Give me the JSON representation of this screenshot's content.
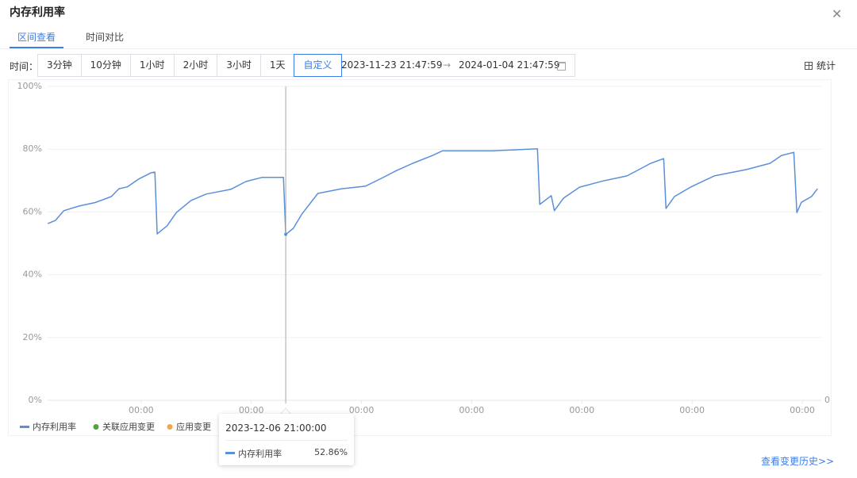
{
  "header": {
    "title": "内存利用率"
  },
  "tabs": [
    "区间查看",
    "时间对比"
  ],
  "active_tab": 0,
  "toolbar": {
    "label": "时间：",
    "ranges": [
      "3分钟",
      "10分钟",
      "1小时",
      "2小时",
      "3小时",
      "1天",
      "自定义"
    ],
    "selected": 6,
    "start": "2023-11-23 21:47:59",
    "separator": "→",
    "end": "2024-01-04 21:47:59",
    "stats": "统计"
  },
  "chart_data": {
    "type": "line",
    "x": [
      "2023-11-23 22:00",
      "2023-11-24 08:00",
      "2023-11-24 19:00",
      "2023-11-25 15:00",
      "2023-11-26 12:00",
      "2023-11-27 09:00",
      "2023-11-27 19:00",
      "2023-11-28 06:00",
      "2023-11-28 21:00",
      "2023-11-29 13:00",
      "2023-11-29 18:00",
      "2023-11-29 21:00",
      "2023-11-30 10:00",
      "2023-11-30 22:00",
      "2023-12-01 17:00",
      "2023-12-02 13:00",
      "2023-12-03 21:00",
      "2023-12-04 17:00",
      "2023-12-05 14:00",
      "2023-12-06 18:00",
      "2023-12-06 21:00",
      "2023-12-07 07:00",
      "2023-12-07 18:00",
      "2023-12-08 15:00",
      "2023-12-09 22:00",
      "2023-12-11 05:00",
      "2023-12-12 02:00",
      "2023-12-12 22:00",
      "2023-12-13 19:00",
      "2023-12-14 21:00",
      "2023-12-15 10:00",
      "2023-12-18 03:00",
      "2023-12-20 14:00",
      "2023-12-20 17:00",
      "2023-12-21 08:00",
      "2023-12-21 12:00",
      "2023-12-22 00:00",
      "2023-12-22 21:00",
      "2023-12-24 04:00",
      "2023-12-25 11:00",
      "2023-12-26 18:00",
      "2023-12-27 11:00",
      "2023-12-27 14:00",
      "2023-12-28 01:00",
      "2023-12-28 22:00",
      "2023-12-30 05:00",
      "2023-12-31 23:00",
      "2024-01-02 06:00",
      "2024-01-02 21:00",
      "2024-01-03 13:00",
      "2024-01-03 17:00",
      "2024-01-03 23:00",
      "2024-01-04 12:00",
      "2024-01-04 20:00"
    ],
    "series": [
      {
        "name": "内存利用率",
        "color": "#5b8fd9",
        "values": [
          56.3,
          57.3,
          60.4,
          61.9,
          63.0,
          64.9,
          67.4,
          68.0,
          70.5,
          72.5,
          72.7,
          53.0,
          55.6,
          59.8,
          63.6,
          65.7,
          67.2,
          69.7,
          71.0,
          71.0,
          52.86,
          54.8,
          59.3,
          65.9,
          67.4,
          68.2,
          70.7,
          73.2,
          75.5,
          78.0,
          79.5,
          79.5,
          80.1,
          62.4,
          65.2,
          60.4,
          64.4,
          67.9,
          69.9,
          71.5,
          75.5,
          77.0,
          61.1,
          64.9,
          67.9,
          71.5,
          73.5,
          75.5,
          78.0,
          79.0,
          59.8,
          63.1,
          64.9,
          67.4
        ]
      }
    ],
    "legend_items": [
      {
        "name": "关联应用变更",
        "color": "#52a33a"
      },
      {
        "name": "应用变更",
        "color": "#f0a94a"
      }
    ],
    "xlim": [
      "2023-11-23 21:47:59",
      "2024-01-04 21:47:59"
    ],
    "xticks": [
      {
        "value": "2023-11-29 00:00",
        "label": "00:00"
      },
      {
        "value": "2023-12-05 00:00",
        "label": "00:00"
      },
      {
        "value": "2023-12-11 00:00",
        "label": "00:00"
      },
      {
        "value": "2023-12-17 00:00",
        "label": "00:00"
      },
      {
        "value": "2023-12-23 00:00",
        "label": "00:00"
      },
      {
        "value": "2023-12-29 00:00",
        "label": "00:00"
      },
      {
        "value": "2024-01-04 00:00",
        "label": "00:00"
      }
    ],
    "ylim": [
      0,
      100
    ],
    "yticks": [
      {
        "value": 0,
        "label": "0%"
      },
      {
        "value": 20,
        "label": "20%"
      },
      {
        "value": 40,
        "label": "40%"
      },
      {
        "value": 60,
        "label": "60%"
      },
      {
        "value": 80,
        "label": "80%"
      },
      {
        "value": 100,
        "label": "100%"
      }
    ],
    "y2lim": [
      0,
      1
    ],
    "y2ticks": [
      0
    ],
    "grid": true,
    "tooltip": {
      "title": "2023-12-06 21:00:00",
      "series": "内存利用率",
      "value": {
        "value": 52.86,
        "label": "52.86%"
      }
    }
  },
  "footer": {
    "link": "查看变更历史>>"
  }
}
